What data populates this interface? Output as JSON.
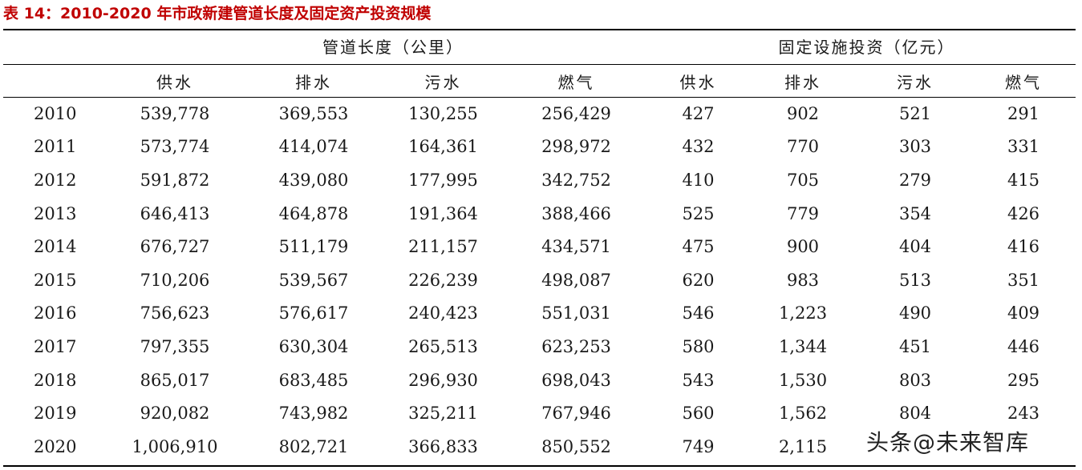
{
  "title": "表 14：2010-2020 年市政新建管道长度及固定资产投资规模",
  "group_headers": [
    "管道长度（公里）",
    "固定设施投资（亿元）"
  ],
  "columns": [
    "",
    "供水",
    "排水",
    "污水",
    "燃气",
    "供水",
    "排水",
    "污水",
    "燃气"
  ],
  "rows": [
    [
      "2010",
      "539,778",
      "369,553",
      "130,255",
      "256,429",
      "427",
      "902",
      "521",
      "291"
    ],
    [
      "2011",
      "573,774",
      "414,074",
      "164,361",
      "298,972",
      "432",
      "770",
      "303",
      "331"
    ],
    [
      "2012",
      "591,872",
      "439,080",
      "177,995",
      "342,752",
      "410",
      "705",
      "279",
      "415"
    ],
    [
      "2013",
      "646,413",
      "464,878",
      "191,364",
      "388,466",
      "525",
      "779",
      "354",
      "426"
    ],
    [
      "2014",
      "676,727",
      "511,179",
      "211,157",
      "434,571",
      "475",
      "900",
      "404",
      "416"
    ],
    [
      "2015",
      "710,206",
      "539,567",
      "226,239",
      "498,087",
      "620",
      "983",
      "513",
      "351"
    ],
    [
      "2016",
      "756,623",
      "576,617",
      "240,423",
      "551,031",
      "546",
      "1,223",
      "490",
      "409"
    ],
    [
      "2017",
      "797,355",
      "630,304",
      "265,513",
      "623,253",
      "580",
      "1,344",
      "451",
      "446"
    ],
    [
      "2018",
      "865,017",
      "683,485",
      "296,930",
      "698,043",
      "543",
      "1,530",
      "803",
      "295"
    ],
    [
      "2019",
      "920,082",
      "743,982",
      "325,211",
      "767,946",
      "560",
      "1,562",
      "804",
      "243"
    ],
    [
      "2020",
      "1,006,910",
      "802,721",
      "366,833",
      "850,552",
      "749",
      "2,115",
      "",
      ""
    ]
  ],
  "watermark": "头条@未来智库"
}
